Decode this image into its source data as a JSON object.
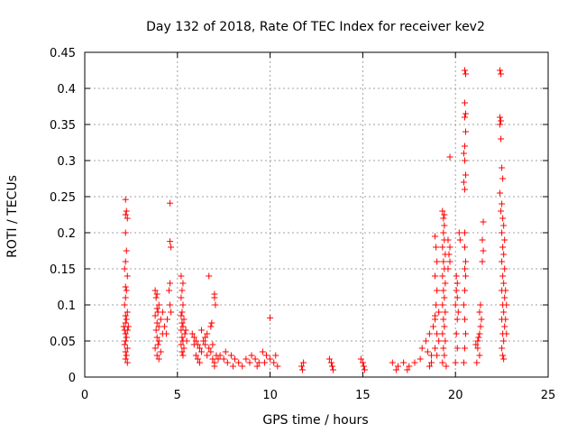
{
  "chart_data": {
    "type": "scatter",
    "title": "Day 132 of 2018, Rate Of TEC Index for receiver kev2",
    "xlabel": "GPS time / hours",
    "ylabel": "ROTI / TECUs",
    "xlim": [
      0,
      25
    ],
    "ylim": [
      0,
      0.45
    ],
    "x_ticks": [
      0,
      5,
      10,
      15,
      20,
      25
    ],
    "x_tick_labels": [
      "0",
      "5",
      "10",
      "15",
      "20",
      "25"
    ],
    "y_ticks": [
      0,
      0.05,
      0.1,
      0.15,
      0.2,
      0.25,
      0.3,
      0.35,
      0.4,
      0.45
    ],
    "y_tick_labels": [
      "0",
      "0.05",
      "0.1",
      "0.15",
      "0.2",
      "0.25",
      "0.3",
      "0.35",
      "0.4",
      "0.45"
    ],
    "grid": true,
    "marker": "+",
    "color": "#ff0000",
    "series": [
      {
        "name": "ROTI",
        "points": [
          [
            2.2,
            0.246
          ],
          [
            2.25,
            0.23
          ],
          [
            2.2,
            0.225
          ],
          [
            2.3,
            0.22
          ],
          [
            2.2,
            0.2
          ],
          [
            2.25,
            0.175
          ],
          [
            2.2,
            0.16
          ],
          [
            2.15,
            0.15
          ],
          [
            2.3,
            0.14
          ],
          [
            2.2,
            0.125
          ],
          [
            2.25,
            0.12
          ],
          [
            2.2,
            0.11
          ],
          [
            2.15,
            0.1
          ],
          [
            2.3,
            0.09
          ],
          [
            2.2,
            0.085
          ],
          [
            2.25,
            0.08
          ],
          [
            2.2,
            0.075
          ],
          [
            2.1,
            0.07
          ],
          [
            2.3,
            0.065
          ],
          [
            2.2,
            0.06
          ],
          [
            2.25,
            0.055
          ],
          [
            2.2,
            0.05
          ],
          [
            2.15,
            0.045
          ],
          [
            2.3,
            0.04
          ],
          [
            2.2,
            0.035
          ],
          [
            2.25,
            0.03
          ],
          [
            2.2,
            0.025
          ],
          [
            2.3,
            0.02
          ],
          [
            2.15,
            0.065
          ],
          [
            2.35,
            0.07
          ],
          [
            3.8,
            0.12
          ],
          [
            3.9,
            0.115
          ],
          [
            3.85,
            0.11
          ],
          [
            4.0,
            0.1
          ],
          [
            3.9,
            0.095
          ],
          [
            3.95,
            0.09
          ],
          [
            3.8,
            0.085
          ],
          [
            4.1,
            0.08
          ],
          [
            3.9,
            0.075
          ],
          [
            4.0,
            0.07
          ],
          [
            3.85,
            0.065
          ],
          [
            4.2,
            0.06
          ],
          [
            3.9,
            0.055
          ],
          [
            4.0,
            0.05
          ],
          [
            3.95,
            0.045
          ],
          [
            3.8,
            0.04
          ],
          [
            4.1,
            0.035
          ],
          [
            3.9,
            0.03
          ],
          [
            4.0,
            0.025
          ],
          [
            4.3,
            0.07
          ],
          [
            4.4,
            0.06
          ],
          [
            4.2,
            0.09
          ],
          [
            4.45,
            0.08
          ],
          [
            4.6,
            0.241
          ],
          [
            4.6,
            0.188
          ],
          [
            4.65,
            0.18
          ],
          [
            4.6,
            0.13
          ],
          [
            4.55,
            0.12
          ],
          [
            4.6,
            0.1
          ],
          [
            4.65,
            0.09
          ],
          [
            5.2,
            0.14
          ],
          [
            5.3,
            0.13
          ],
          [
            5.25,
            0.12
          ],
          [
            5.2,
            0.11
          ],
          [
            5.3,
            0.1
          ],
          [
            5.25,
            0.09
          ],
          [
            5.2,
            0.085
          ],
          [
            5.35,
            0.08
          ],
          [
            5.25,
            0.075
          ],
          [
            5.3,
            0.07
          ],
          [
            5.2,
            0.065
          ],
          [
            5.4,
            0.06
          ],
          [
            5.25,
            0.055
          ],
          [
            5.3,
            0.05
          ],
          [
            5.2,
            0.045
          ],
          [
            5.35,
            0.04
          ],
          [
            5.25,
            0.035
          ],
          [
            5.3,
            0.03
          ],
          [
            5.5,
            0.05
          ],
          [
            5.45,
            0.065
          ],
          [
            5.8,
            0.06
          ],
          [
            5.9,
            0.055
          ],
          [
            6.0,
            0.05
          ],
          [
            6.1,
            0.045
          ],
          [
            6.2,
            0.04
          ],
          [
            6.3,
            0.035
          ],
          [
            6.0,
            0.03
          ],
          [
            6.1,
            0.025
          ],
          [
            6.2,
            0.02
          ],
          [
            5.9,
            0.045
          ],
          [
            6.4,
            0.05
          ],
          [
            6.5,
            0.055
          ],
          [
            6.3,
            0.065
          ],
          [
            6.6,
            0.06
          ],
          [
            6.5,
            0.045
          ],
          [
            6.7,
            0.04
          ],
          [
            6.8,
            0.035
          ],
          [
            6.6,
            0.03
          ],
          [
            6.9,
            0.025
          ],
          [
            7.0,
            0.02
          ],
          [
            6.7,
            0.14
          ],
          [
            6.8,
            0.07
          ],
          [
            6.85,
            0.075
          ],
          [
            7.1,
            0.03
          ],
          [
            7.2,
            0.025
          ],
          [
            7.0,
            0.015
          ],
          [
            6.9,
            0.045
          ],
          [
            7.0,
            0.115
          ],
          [
            7.0,
            0.11
          ],
          [
            7.05,
            0.1
          ],
          [
            7.3,
            0.03
          ],
          [
            7.5,
            0.025
          ],
          [
            7.7,
            0.02
          ],
          [
            7.9,
            0.03
          ],
          [
            8.1,
            0.025
          ],
          [
            8.3,
            0.02
          ],
          [
            8.5,
            0.015
          ],
          [
            8.7,
            0.025
          ],
          [
            8.9,
            0.02
          ],
          [
            7.6,
            0.035
          ],
          [
            8.0,
            0.015
          ],
          [
            9.0,
            0.03
          ],
          [
            9.2,
            0.025
          ],
          [
            9.4,
            0.02
          ],
          [
            9.6,
            0.035
          ],
          [
            9.8,
            0.03
          ],
          [
            10.0,
            0.025
          ],
          [
            10.2,
            0.02
          ],
          [
            10.4,
            0.015
          ],
          [
            9.3,
            0.015
          ],
          [
            9.7,
            0.02
          ],
          [
            10.0,
            0.082
          ],
          [
            10.3,
            0.03
          ],
          [
            11.7,
            0.015
          ],
          [
            11.75,
            0.01
          ],
          [
            11.8,
            0.02
          ],
          [
            13.2,
            0.025
          ],
          [
            13.3,
            0.02
          ],
          [
            13.35,
            0.015
          ],
          [
            13.4,
            0.01
          ],
          [
            14.9,
            0.025
          ],
          [
            15.0,
            0.02
          ],
          [
            15.05,
            0.015
          ],
          [
            15.1,
            0.01
          ],
          [
            16.6,
            0.02
          ],
          [
            16.9,
            0.015
          ],
          [
            17.2,
            0.02
          ],
          [
            17.5,
            0.015
          ],
          [
            17.8,
            0.02
          ],
          [
            18.1,
            0.025
          ],
          [
            16.8,
            0.01
          ],
          [
            17.4,
            0.01
          ],
          [
            18.2,
            0.04
          ],
          [
            18.4,
            0.05
          ],
          [
            18.6,
            0.06
          ],
          [
            18.5,
            0.035
          ],
          [
            18.7,
            0.03
          ],
          [
            18.8,
            0.07
          ],
          [
            18.9,
            0.08
          ],
          [
            19.0,
            0.06
          ],
          [
            18.9,
            0.04
          ],
          [
            19.1,
            0.05
          ],
          [
            19.0,
            0.03
          ],
          [
            18.7,
            0.02
          ],
          [
            18.6,
            0.015
          ],
          [
            18.9,
            0.195
          ],
          [
            18.95,
            0.18
          ],
          [
            19.0,
            0.16
          ],
          [
            18.9,
            0.14
          ],
          [
            19.0,
            0.12
          ],
          [
            18.95,
            0.1
          ],
          [
            19.1,
            0.09
          ],
          [
            18.9,
            0.085
          ],
          [
            19.3,
            0.23
          ],
          [
            19.4,
            0.225
          ],
          [
            19.35,
            0.22
          ],
          [
            19.4,
            0.21
          ],
          [
            19.35,
            0.2
          ],
          [
            19.4,
            0.19
          ],
          [
            19.3,
            0.18
          ],
          [
            19.45,
            0.17
          ],
          [
            19.35,
            0.16
          ],
          [
            19.4,
            0.15
          ],
          [
            19.3,
            0.14
          ],
          [
            19.45,
            0.13
          ],
          [
            19.35,
            0.12
          ],
          [
            19.4,
            0.11
          ],
          [
            19.3,
            0.1
          ],
          [
            19.45,
            0.09
          ],
          [
            19.35,
            0.08
          ],
          [
            19.4,
            0.07
          ],
          [
            19.3,
            0.06
          ],
          [
            19.45,
            0.05
          ],
          [
            19.35,
            0.04
          ],
          [
            19.4,
            0.03
          ],
          [
            19.3,
            0.02
          ],
          [
            19.5,
            0.015
          ],
          [
            19.7,
            0.305
          ],
          [
            19.6,
            0.19
          ],
          [
            19.7,
            0.18
          ],
          [
            19.65,
            0.17
          ],
          [
            19.7,
            0.16
          ],
          [
            19.6,
            0.15
          ],
          [
            20.05,
            0.14
          ],
          [
            20.1,
            0.13
          ],
          [
            20.05,
            0.12
          ],
          [
            20.1,
            0.11
          ],
          [
            20.0,
            0.1
          ],
          [
            20.15,
            0.09
          ],
          [
            20.1,
            0.08
          ],
          [
            20.05,
            0.06
          ],
          [
            20.1,
            0.04
          ],
          [
            20.0,
            0.02
          ],
          [
            20.2,
            0.2
          ],
          [
            20.25,
            0.19
          ],
          [
            20.5,
            0.425
          ],
          [
            20.55,
            0.42
          ],
          [
            20.5,
            0.38
          ],
          [
            20.55,
            0.365
          ],
          [
            20.5,
            0.36
          ],
          [
            20.55,
            0.34
          ],
          [
            20.5,
            0.32
          ],
          [
            20.45,
            0.31
          ],
          [
            20.5,
            0.3
          ],
          [
            20.55,
            0.28
          ],
          [
            20.45,
            0.27
          ],
          [
            20.5,
            0.26
          ],
          [
            20.5,
            0.2
          ],
          [
            20.5,
            0.18
          ],
          [
            20.55,
            0.16
          ],
          [
            20.5,
            0.15
          ],
          [
            20.55,
            0.14
          ],
          [
            20.5,
            0.12
          ],
          [
            20.45,
            0.1
          ],
          [
            20.5,
            0.08
          ],
          [
            20.55,
            0.06
          ],
          [
            20.5,
            0.04
          ],
          [
            20.45,
            0.02
          ],
          [
            21.1,
            0.045
          ],
          [
            21.2,
            0.05
          ],
          [
            21.25,
            0.055
          ],
          [
            21.3,
            0.06
          ],
          [
            21.35,
            0.07
          ],
          [
            21.4,
            0.08
          ],
          [
            21.3,
            0.09
          ],
          [
            21.35,
            0.1
          ],
          [
            21.2,
            0.04
          ],
          [
            21.3,
            0.03
          ],
          [
            21.15,
            0.02
          ],
          [
            21.5,
            0.215
          ],
          [
            21.45,
            0.19
          ],
          [
            21.5,
            0.175
          ],
          [
            21.45,
            0.16
          ],
          [
            22.4,
            0.425
          ],
          [
            22.45,
            0.42
          ],
          [
            22.4,
            0.36
          ],
          [
            22.45,
            0.355
          ],
          [
            22.4,
            0.35
          ],
          [
            22.45,
            0.33
          ],
          [
            22.5,
            0.29
          ],
          [
            22.55,
            0.275
          ],
          [
            22.4,
            0.255
          ],
          [
            22.5,
            0.24
          ],
          [
            22.45,
            0.23
          ],
          [
            22.55,
            0.22
          ],
          [
            22.6,
            0.21
          ],
          [
            22.5,
            0.2
          ],
          [
            22.65,
            0.19
          ],
          [
            22.55,
            0.18
          ],
          [
            22.6,
            0.17
          ],
          [
            22.5,
            0.16
          ],
          [
            22.65,
            0.15
          ],
          [
            22.55,
            0.14
          ],
          [
            22.6,
            0.13
          ],
          [
            22.5,
            0.12
          ],
          [
            22.65,
            0.11
          ],
          [
            22.55,
            0.1
          ],
          [
            22.6,
            0.09
          ],
          [
            22.5,
            0.08
          ],
          [
            22.65,
            0.07
          ],
          [
            22.55,
            0.06
          ],
          [
            22.6,
            0.05
          ],
          [
            22.5,
            0.04
          ],
          [
            22.55,
            0.03
          ],
          [
            22.6,
            0.025
          ],
          [
            22.7,
            0.12
          ],
          [
            22.75,
            0.1
          ],
          [
            22.7,
            0.08
          ],
          [
            22.75,
            0.06
          ]
        ]
      }
    ]
  }
}
